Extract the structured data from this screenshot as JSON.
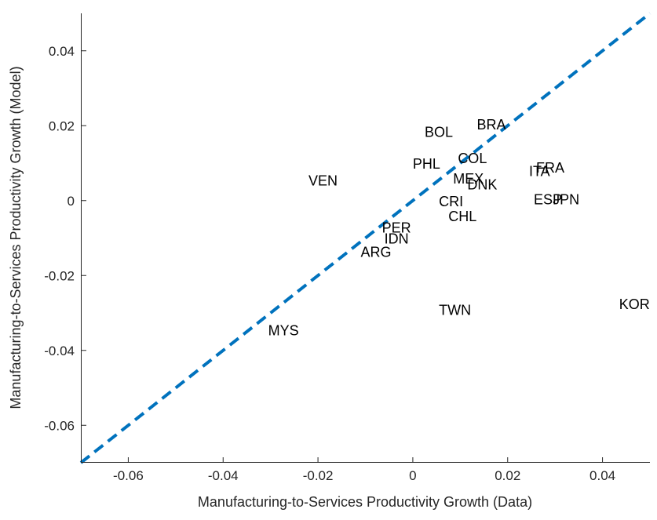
{
  "chart_data": {
    "type": "scatter",
    "title": "",
    "xlabel": "Manufacturing-to-Services Productivity Growth (Data)",
    "ylabel": "Manufacturing-to-Services Productivity Growth (Model)",
    "xlim": [
      -0.07,
      0.05
    ],
    "ylim": [
      -0.07,
      0.05
    ],
    "xticks": [
      -0.06,
      -0.04,
      -0.02,
      0,
      0.02,
      0.04
    ],
    "xtick_labels": [
      "-0.06",
      "-0.04",
      "-0.02",
      "0",
      "0.02",
      "0.04"
    ],
    "yticks": [
      -0.06,
      -0.04,
      -0.02,
      0,
      0.02,
      0.04
    ],
    "ytick_labels": [
      "-0.06",
      "-0.04",
      "-0.02",
      "0",
      "0.02",
      "0.04"
    ],
    "grid": false,
    "reference_line": {
      "style": "dashed",
      "color": "#0072BD",
      "points": [
        [
          -0.07,
          -0.07
        ],
        [
          0.05,
          0.05
        ]
      ]
    },
    "points": [
      {
        "label": "BOL",
        "x": 0.0025,
        "y": 0.018
      },
      {
        "label": "BRA",
        "x": 0.0135,
        "y": 0.02
      },
      {
        "label": "COL",
        "x": 0.0095,
        "y": 0.011
      },
      {
        "label": "PHL",
        "x": 0.0,
        "y": 0.0095
      },
      {
        "label": "VEN",
        "x": -0.022,
        "y": 0.005
      },
      {
        "label": "MEX",
        "x": 0.0085,
        "y": 0.0055
      },
      {
        "label": "DNK",
        "x": 0.0115,
        "y": 0.004
      },
      {
        "label": "FRA",
        "x": 0.026,
        "y": 0.0085
      },
      {
        "label": "ITA",
        "x": 0.0245,
        "y": 0.0075
      },
      {
        "label": "ESP",
        "x": 0.0255,
        "y": 0.0
      },
      {
        "label": "JPN",
        "x": 0.0295,
        "y": 0.0
      },
      {
        "label": "CRI",
        "x": 0.0055,
        "y": -0.0005
      },
      {
        "label": "CHL",
        "x": 0.0075,
        "y": -0.0045
      },
      {
        "label": "PER",
        "x": -0.0065,
        "y": -0.0075
      },
      {
        "label": "IDN",
        "x": -0.006,
        "y": -0.0105
      },
      {
        "label": "ARG",
        "x": -0.011,
        "y": -0.014
      },
      {
        "label": "TWN",
        "x": 0.0055,
        "y": -0.0295
      },
      {
        "label": "KOR",
        "x": 0.0435,
        "y": -0.028
      },
      {
        "label": "MYS",
        "x": -0.0305,
        "y": -0.035
      }
    ]
  }
}
